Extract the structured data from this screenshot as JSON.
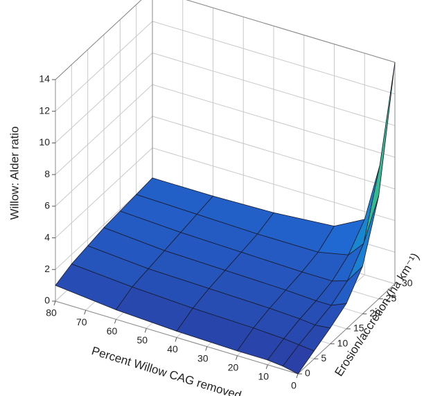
{
  "chart_data": {
    "type": "surface",
    "xlabel": "Percent Willow CAG removed",
    "ylabel": "Erosion/accretion (ha km⁻¹)",
    "zlabel": "Willow: Alder ratio",
    "x": [
      0,
      5,
      10,
      20,
      40,
      60,
      80
    ],
    "y": [
      0,
      5,
      10,
      15,
      20,
      25,
      30
    ],
    "z": [
      [
        0,
        0.2,
        0.3,
        0.3,
        0.4,
        0.6,
        1.0
      ],
      [
        0.5,
        0.6,
        0.7,
        0.8,
        0.9,
        1.1,
        1.4
      ],
      [
        1.0,
        0.9,
        1.0,
        1.1,
        1.2,
        1.3,
        1.6
      ],
      [
        1.6,
        1.2,
        1.2,
        1.3,
        1.4,
        1.5,
        1.8
      ],
      [
        3.0,
        1.8,
        1.5,
        1.5,
        1.6,
        1.7,
        1.9
      ],
      [
        6.5,
        3.2,
        2.2,
        1.8,
        1.8,
        1.9,
        2.0
      ],
      [
        14,
        7.2,
        3.5,
        2.5,
        2.2,
        2.1,
        2.1
      ]
    ],
    "xlim": [
      0,
      80
    ],
    "xticks": [
      0,
      10,
      20,
      30,
      40,
      50,
      60,
      70,
      80
    ],
    "ylim": [
      0,
      30
    ],
    "yticks": [
      0,
      5,
      10,
      15,
      20,
      25,
      30
    ],
    "zlim": [
      0,
      14
    ],
    "zticks": [
      0,
      2,
      4,
      6,
      8,
      10,
      12,
      14
    ],
    "grid": true,
    "colormap": [
      "#2b3a9f",
      "#1f6fd8",
      "#12a5c6",
      "#3fbf7f",
      "#c2c72b",
      "#f5e11a"
    ]
  }
}
